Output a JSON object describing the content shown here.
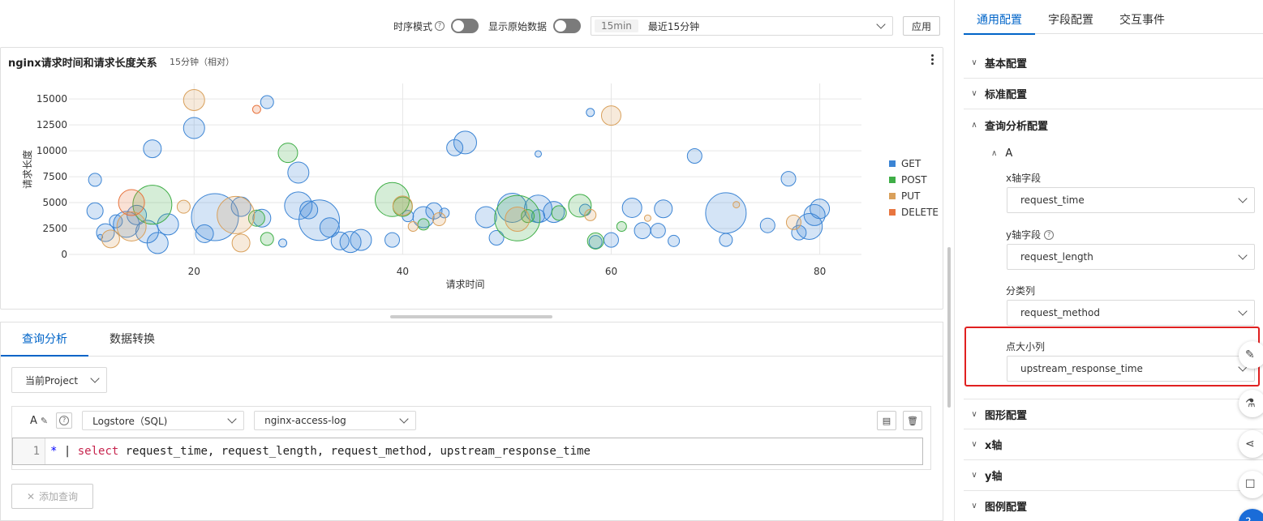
{
  "toolbar": {
    "timeseries_label": "时序模式",
    "raw_data_label": "显示原始数据",
    "time_tag": "15min",
    "time_range": "最近15分钟",
    "apply_label": "应用"
  },
  "chart_panel": {
    "title": "nginx请求时间和请求长度关系",
    "subtitle": "15分钟（相对）"
  },
  "chart_data": {
    "type": "scatter",
    "xlabel": "请求时间",
    "ylabel": "请求长度",
    "xlim": [
      8,
      84
    ],
    "ylim": [
      0,
      16500
    ],
    "xticks": [
      20,
      40,
      60,
      80
    ],
    "yticks": [
      0,
      2500,
      5000,
      7500,
      10000,
      12500,
      15000
    ],
    "grid": true,
    "legend_position": "right",
    "size_field": "upstream_response_time",
    "series": [
      {
        "name": "GET",
        "color": "#3b84d4",
        "points": [
          [
            10.5,
            7200,
            8
          ],
          [
            10.5,
            4200,
            10
          ],
          [
            11.5,
            2100,
            11
          ],
          [
            12.5,
            3200,
            8
          ],
          [
            13.5,
            2900,
            16
          ],
          [
            14.5,
            3800,
            12
          ],
          [
            15.5,
            2200,
            14
          ],
          [
            16,
            10200,
            11
          ],
          [
            16.5,
            1100,
            13
          ],
          [
            17.5,
            2900,
            13
          ],
          [
            20,
            12200,
            13
          ],
          [
            21,
            2000,
            11
          ],
          [
            22,
            3600,
            29
          ],
          [
            24.5,
            4600,
            12
          ],
          [
            26.5,
            3500,
            11
          ],
          [
            27,
            14700,
            8
          ],
          [
            28.5,
            1100,
            5
          ],
          [
            30,
            7900,
            13
          ],
          [
            30,
            4700,
            17
          ],
          [
            31,
            4300,
            11
          ],
          [
            32,
            3300,
            25
          ],
          [
            33,
            2600,
            12
          ],
          [
            34,
            1300,
            11
          ],
          [
            35,
            1200,
            13
          ],
          [
            36,
            1400,
            13
          ],
          [
            39,
            1400,
            9
          ],
          [
            40.5,
            3700,
            7
          ],
          [
            42,
            3600,
            13
          ],
          [
            43,
            4200,
            10
          ],
          [
            44,
            4000,
            6
          ],
          [
            45,
            10300,
            10
          ],
          [
            46,
            10800,
            14
          ],
          [
            48,
            3600,
            13
          ],
          [
            49,
            1600,
            9
          ],
          [
            50.5,
            4500,
            18
          ],
          [
            53,
            3700,
            8
          ],
          [
            53,
            9700,
            4
          ],
          [
            53,
            4400,
            17
          ],
          [
            54.5,
            4100,
            13
          ],
          [
            57.5,
            4300,
            7
          ],
          [
            58,
            13700,
            5
          ],
          [
            58.5,
            1200,
            8
          ],
          [
            60,
            1400,
            9
          ],
          [
            62,
            4500,
            12
          ],
          [
            63,
            2300,
            10
          ],
          [
            64.5,
            2300,
            9
          ],
          [
            65,
            4400,
            11
          ],
          [
            66,
            1300,
            7
          ],
          [
            68,
            9500,
            9
          ],
          [
            71,
            4000,
            25
          ],
          [
            71,
            1400,
            8
          ],
          [
            75,
            2800,
            9
          ],
          [
            77,
            7300,
            9
          ],
          [
            78,
            2100,
            9
          ],
          [
            79,
            2700,
            16
          ],
          [
            79.5,
            3800,
            13
          ],
          [
            80,
            4400,
            12
          ],
          [
            11,
            1700,
            3
          ]
        ]
      },
      {
        "name": "POST",
        "color": "#3fae47",
        "points": [
          [
            16,
            4800,
            24
          ],
          [
            26,
            3500,
            10
          ],
          [
            27,
            1500,
            8
          ],
          [
            29,
            9800,
            12
          ],
          [
            39,
            5300,
            21
          ],
          [
            40,
            4600,
            12
          ],
          [
            42,
            2900,
            7
          ],
          [
            51,
            3500,
            28
          ],
          [
            52,
            3700,
            8
          ],
          [
            55,
            4000,
            9
          ],
          [
            57,
            4700,
            14
          ],
          [
            58.5,
            1300,
            10
          ],
          [
            61,
            2700,
            6
          ]
        ]
      },
      {
        "name": "PUT",
        "color": "#d9a05b",
        "points": [
          [
            12,
            1500,
            11
          ],
          [
            14,
            2700,
            18
          ],
          [
            19,
            4600,
            8
          ],
          [
            20,
            14900,
            13
          ],
          [
            24,
            3800,
            23
          ],
          [
            24.5,
            1100,
            11
          ],
          [
            40,
            4700,
            12
          ],
          [
            41,
            2700,
            6
          ],
          [
            43.5,
            3400,
            8
          ],
          [
            51,
            3400,
            15
          ],
          [
            58,
            3800,
            7
          ],
          [
            60,
            13400,
            12
          ],
          [
            63.5,
            3500,
            4
          ],
          [
            72,
            4800,
            4
          ],
          [
            77.5,
            3100,
            9
          ]
        ]
      },
      {
        "name": "DELETE",
        "color": "#e8753f",
        "points": [
          [
            14,
            5000,
            16
          ],
          [
            26,
            14000,
            5
          ]
        ]
      }
    ]
  },
  "query_panel": {
    "tabs": [
      "查询分析",
      "数据转换"
    ],
    "project_select": "当前Project",
    "editor_letter": "A",
    "logstore_type": "Logstore（SQL)",
    "logstore_name": "nginx-access-log",
    "line_number": "1",
    "code_star": "*",
    "code_pipe": " | ",
    "code_select": "select",
    "code_fields": " request_time, request_length, request_method, upstream_response_time",
    "add_query_label": "添加查询"
  },
  "right_panel": {
    "tabs": [
      "通用配置",
      "字段配置",
      "交互事件"
    ],
    "sections": {
      "basic": "基本配置",
      "standard": "标准配置",
      "query": "查询分析配置",
      "graph": "图形配置",
      "xaxis": "x轴",
      "yaxis": "y轴",
      "legend": "图例配置"
    },
    "query_letter": "A",
    "x_field_label": "x轴字段",
    "x_field_value": "request_time",
    "y_field_label": "y轴字段",
    "y_field_value": "request_length",
    "category_label": "分类列",
    "category_value": "request_method",
    "size_label": "点大小列",
    "size_value": "upstream_response_time"
  }
}
